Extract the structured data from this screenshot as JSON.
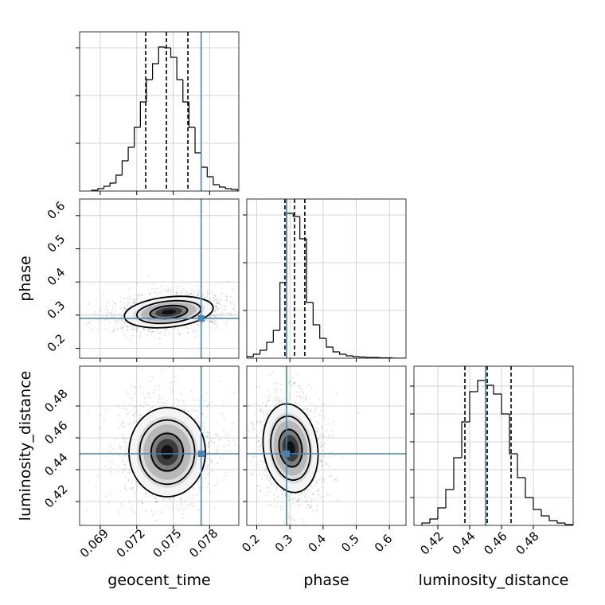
{
  "chart_data": {
    "type": "corner",
    "truth_color": "#4682b4",
    "hist_color": "#000000",
    "grid": true,
    "parameters": [
      {
        "name": "geocent_time",
        "xlim": [
          0.0673,
          0.0804
        ],
        "xticks": [
          0.069,
          0.072,
          0.075,
          0.078
        ],
        "bins": [
          0.0683,
          0.0688,
          0.0693,
          0.0698,
          0.0703,
          0.0708,
          0.0713,
          0.0718,
          0.0723,
          0.0728,
          0.0733,
          0.0738,
          0.0743,
          0.0748,
          0.0753,
          0.0758,
          0.0763,
          0.0768,
          0.0773,
          0.0778,
          0.0783,
          0.0788,
          0.0793,
          0.0798,
          0.0803
        ],
        "counts": [
          1,
          3,
          6,
          10,
          20,
          38,
          55,
          80,
          112,
          140,
          160,
          181,
          180,
          168,
          140,
          112,
          80,
          48,
          30,
          18,
          8,
          5,
          3,
          2
        ],
        "hist_ylim": [
          0,
          200
        ],
        "hist_yticks": [
          60,
          120,
          180
        ],
        "quantiles": [
          0.07274,
          0.07444,
          0.07621
        ],
        "truth": 0.0773
      },
      {
        "name": "phase",
        "xlim": [
          0.17,
          0.65
        ],
        "xticks": [
          0.2,
          0.3,
          0.4,
          0.5,
          0.6
        ],
        "bins": [
          0.17,
          0.19,
          0.21,
          0.23,
          0.25,
          0.27,
          0.29,
          0.31,
          0.33,
          0.35,
          0.37,
          0.39,
          0.41,
          0.43,
          0.45,
          0.47,
          0.49,
          0.51,
          0.53,
          0.55,
          0.57,
          0.59,
          0.61,
          0.63,
          0.65
        ],
        "counts": [
          2,
          5,
          10,
          20,
          35,
          95,
          182,
          178,
          150,
          70,
          42,
          25,
          14,
          8,
          5,
          3,
          2,
          1.5,
          1,
          1,
          0.5,
          0.5,
          0,
          0
        ],
        "hist_ylim": [
          0,
          200
        ],
        "hist_yticks": [
          60,
          120,
          180
        ],
        "quantiles": [
          0.285,
          0.314,
          0.345
        ],
        "truth": 0.29
      },
      {
        "name": "luminosity_distance",
        "xlim": [
          0.405,
          0.505
        ],
        "xticks": [
          0.42,
          0.44,
          0.46,
          0.48
        ],
        "bins": [
          0.41,
          0.415,
          0.42,
          0.425,
          0.43,
          0.435,
          0.44,
          0.445,
          0.45,
          0.455,
          0.46,
          0.465,
          0.47,
          0.475,
          0.48,
          0.485,
          0.49,
          0.495,
          0.5,
          0.505
        ],
        "counts": [
          3,
          8,
          22,
          45,
          85,
          130,
          168,
          182,
          176,
          165,
          140,
          90,
          60,
          35,
          20,
          12,
          6,
          3,
          1
        ],
        "hist_ylim": [
          0,
          200
        ],
        "hist_yticks": [
          35,
          70,
          105,
          140,
          175
        ],
        "quantiles": [
          0.437,
          0.451,
          0.466
        ],
        "truth": 0.45
      }
    ]
  }
}
